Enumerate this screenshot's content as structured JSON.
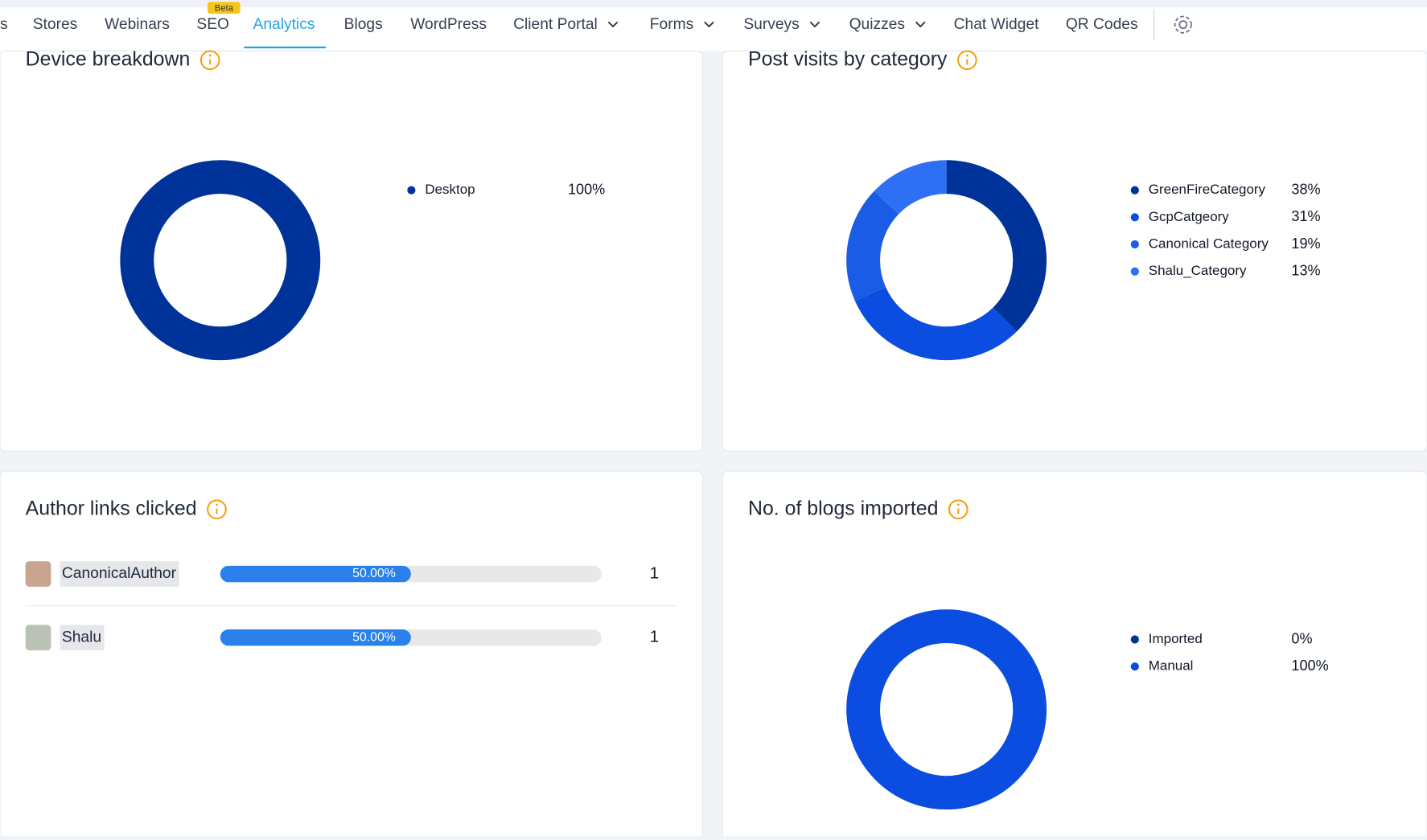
{
  "nav": {
    "items": [
      "s",
      "Stores",
      "Webinars",
      "SEO",
      "Analytics",
      "Blogs",
      "WordPress",
      "Client Portal",
      "Forms",
      "Surveys",
      "Quizzes",
      "Chat Widget",
      "QR Codes"
    ],
    "badge": "Beta",
    "active": 4
  },
  "panels": [
    {
      "chart_data": {
        "type": "donut",
        "title": "Device breakdown",
        "categories": [
          "Desktop"
        ],
        "values": [
          100
        ],
        "value_labels": [
          "100%"
        ],
        "colors": [
          "#003399"
        ]
      }
    },
    {
      "chart_data": {
        "type": "donut",
        "title": "Post visits by category",
        "categories": [
          "GreenFireCategory",
          "GcpCatgeory",
          "Canonical Category",
          "Shalu_Category"
        ],
        "values": [
          38,
          31,
          19,
          13
        ],
        "value_labels": [
          "38%",
          "31%",
          "19%",
          "13%"
        ],
        "colors": [
          "#003399",
          "#0a4de0",
          "#1a5ce6",
          "#2f6ff5"
        ]
      }
    },
    {
      "chart_data": {
        "type": "hbar",
        "title": "Author links clicked",
        "categories": [
          "CanonicalAuthor",
          "Shalu"
        ],
        "values": [
          1,
          1
        ],
        "shares": [
          50,
          50
        ],
        "share_labels": [
          "50.00%",
          "50.00%"
        ],
        "xlim": [
          0,
          100
        ],
        "color": "#2a80ea"
      }
    },
    {
      "chart_data": {
        "type": "donut",
        "title": "No. of blogs imported",
        "categories": [
          "Imported",
          "Manual"
        ],
        "values": [
          0,
          100
        ],
        "value_labels": [
          "0%",
          "100%"
        ],
        "colors": [
          "#003399",
          "#0a4de0"
        ]
      }
    }
  ]
}
